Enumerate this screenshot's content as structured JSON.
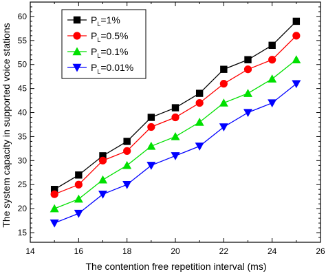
{
  "chart_data": {
    "type": "line",
    "xlabel": "The contention free repetition interval (ms)",
    "ylabel": "The system capacity in supported voice stations",
    "xlim": [
      14,
      26
    ],
    "ylim": [
      13,
      63
    ],
    "x_ticks": [
      14,
      16,
      18,
      20,
      22,
      24,
      26
    ],
    "y_ticks": [
      15,
      20,
      25,
      30,
      35,
      40,
      45,
      50,
      55,
      60
    ],
    "grid": false,
    "legend_position": "top-left",
    "x": [
      15,
      16,
      17,
      18,
      19,
      20,
      21,
      22,
      23,
      24,
      25
    ],
    "series": [
      {
        "name": "P_L=1%",
        "legend_main": "P",
        "legend_sub": "L",
        "legend_rest": "=1%",
        "color": "#000000",
        "marker": "square",
        "values": [
          24,
          27,
          31,
          34,
          39,
          41,
          44,
          49,
          51,
          54,
          59
        ]
      },
      {
        "name": "P_L=0.5%",
        "legend_main": "P",
        "legend_sub": "L",
        "legend_rest": "=0.5%",
        "color": "#ff0000",
        "marker": "circle",
        "values": [
          23,
          25,
          30,
          32,
          37,
          39,
          42,
          46,
          49,
          51,
          56
        ]
      },
      {
        "name": "P_L=0.1%",
        "legend_main": "P",
        "legend_sub": "L",
        "legend_rest": "=0.1%",
        "color": "#00e000",
        "marker": "triangle-up",
        "values": [
          20,
          22,
          26,
          29,
          33,
          35,
          38,
          42,
          44,
          47,
          51
        ]
      },
      {
        "name": "P_L=0.01%",
        "legend_main": "P",
        "legend_sub": "L",
        "legend_rest": "=0.01%",
        "color": "#0000ff",
        "marker": "triangle-down",
        "values": [
          17,
          19,
          23,
          25,
          29,
          31,
          33,
          37,
          40,
          42,
          46
        ]
      }
    ]
  }
}
